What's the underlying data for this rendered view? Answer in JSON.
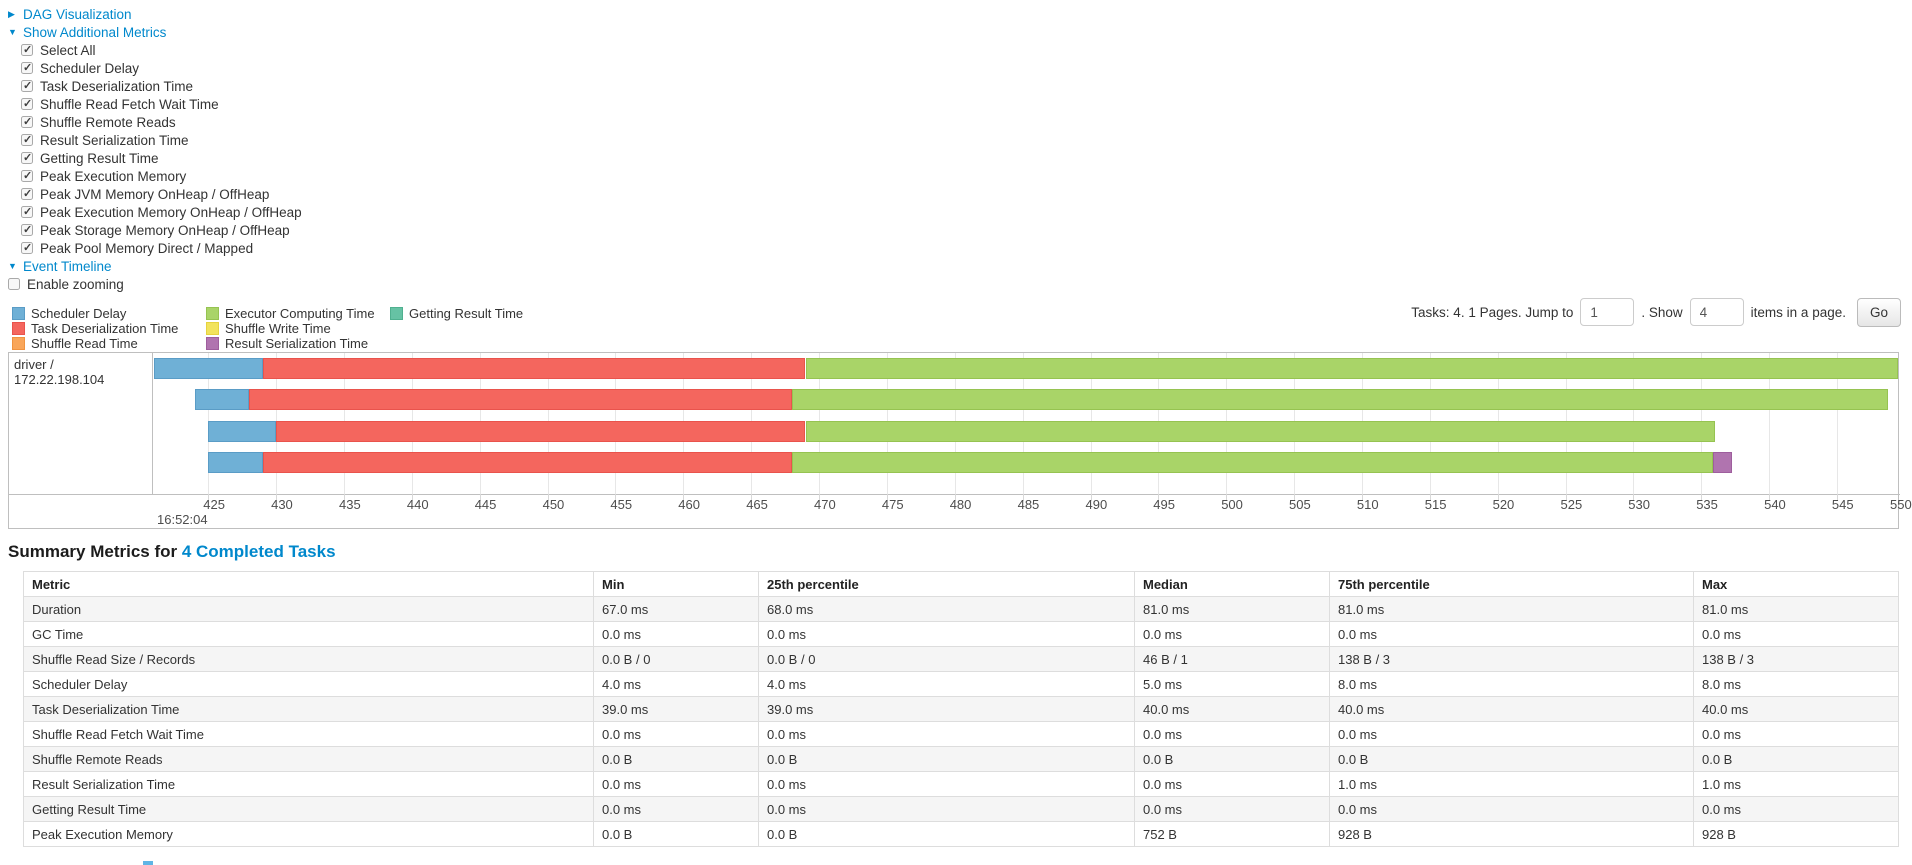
{
  "controls": {
    "dag_visualization": "DAG Visualization",
    "show_additional_metrics": "Show Additional Metrics",
    "metrics_checkboxes": [
      "Select All",
      "Scheduler Delay",
      "Task Deserialization Time",
      "Shuffle Read Fetch Wait Time",
      "Shuffle Remote Reads",
      "Result Serialization Time",
      "Getting Result Time",
      "Peak Execution Memory",
      "Peak JVM Memory OnHeap / OffHeap",
      "Peak Execution Memory OnHeap / OffHeap",
      "Peak Storage Memory OnHeap / OffHeap",
      "Peak Pool Memory Direct / Mapped"
    ],
    "event_timeline": "Event Timeline",
    "enable_zooming": "Enable zooming"
  },
  "pagination": {
    "tasks_info": "Tasks: 4. 1 Pages. Jump to",
    "jump_value": "1",
    "dot_show": ". Show",
    "show_value": "4",
    "items_label": "items in a page.",
    "go_label": "Go"
  },
  "series_styles": {
    "Scheduler Delay": {
      "fill": "#6fb0d6",
      "border": "#5a9cc6"
    },
    "Task Deserialization Time": {
      "fill": "#f4665e",
      "border": "#e9534c"
    },
    "Shuffle Read Time": {
      "fill": "#f9a65a",
      "border": "#f09340"
    },
    "Executor Computing Time": {
      "fill": "#a9d468",
      "border": "#96c351"
    },
    "Shuffle Write Time": {
      "fill": "#f2e35c",
      "border": "#e6d33f"
    },
    "Result Serialization Time": {
      "fill": "#b074af",
      "border": "#9e5e9d"
    },
    "Getting Result Time": {
      "fill": "#66c2a4",
      "border": "#4fb08f"
    }
  },
  "legend_columns": [
    [
      "Scheduler Delay",
      "Task Deserialization Time",
      "Shuffle Read Time"
    ],
    [
      "Executor Computing Time",
      "Shuffle Write Time",
      "Result Serialization Time"
    ],
    [
      "Getting Result Time"
    ]
  ],
  "chart_data": {
    "type": "timeline-gantt",
    "group_label": "driver / 172.22.198.104",
    "x_axis": {
      "domain": [
        421,
        549.5
      ],
      "tick_start": 425,
      "tick_end": 550,
      "tick_step": 5,
      "time_label": "16:52:04"
    },
    "tasks": [
      {
        "segments": [
          {
            "name": "Scheduler Delay",
            "start": 421,
            "end": 429
          },
          {
            "name": "Task Deserialization Time",
            "start": 429,
            "end": 469
          },
          {
            "name": "Executor Computing Time",
            "start": 469,
            "end": 549.6
          }
        ]
      },
      {
        "segments": [
          {
            "name": "Scheduler Delay",
            "start": 424,
            "end": 428
          },
          {
            "name": "Task Deserialization Time",
            "start": 428,
            "end": 468
          },
          {
            "name": "Executor Computing Time",
            "start": 468,
            "end": 548.8
          }
        ]
      },
      {
        "segments": [
          {
            "name": "Scheduler Delay",
            "start": 425,
            "end": 430
          },
          {
            "name": "Task Deserialization Time",
            "start": 430,
            "end": 469
          },
          {
            "name": "Executor Computing Time",
            "start": 469,
            "end": 536
          }
        ]
      },
      {
        "segments": [
          {
            "name": "Scheduler Delay",
            "start": 425,
            "end": 429
          },
          {
            "name": "Task Deserialization Time",
            "start": 429,
            "end": 468
          },
          {
            "name": "Executor Computing Time",
            "start": 468,
            "end": 535.9
          },
          {
            "name": "Result Serialization Time",
            "start": 535.9,
            "end": 537.3
          }
        ]
      }
    ]
  },
  "summary": {
    "title_prefix": "Summary Metrics for ",
    "title_link": "4 Completed Tasks",
    "table": {
      "headers": [
        "Metric",
        "Min",
        "25th percentile",
        "Median",
        "75th percentile",
        "Max"
      ],
      "rows": [
        [
          "Duration",
          "67.0 ms",
          "68.0 ms",
          "81.0 ms",
          "81.0 ms",
          "81.0 ms"
        ],
        [
          "GC Time",
          "0.0 ms",
          "0.0 ms",
          "0.0 ms",
          "0.0 ms",
          "0.0 ms"
        ],
        [
          "Shuffle Read Size / Records",
          "0.0 B / 0",
          "0.0 B / 0",
          "46 B / 1",
          "138 B / 3",
          "138 B / 3"
        ],
        [
          "Scheduler Delay",
          "4.0 ms",
          "4.0 ms",
          "5.0 ms",
          "8.0 ms",
          "8.0 ms"
        ],
        [
          "Task Deserialization Time",
          "39.0 ms",
          "39.0 ms",
          "40.0 ms",
          "40.0 ms",
          "40.0 ms"
        ],
        [
          "Shuffle Read Fetch Wait Time",
          "0.0 ms",
          "0.0 ms",
          "0.0 ms",
          "0.0 ms",
          "0.0 ms"
        ],
        [
          "Shuffle Remote Reads",
          "0.0 B",
          "0.0 B",
          "0.0 B",
          "0.0 B",
          "0.0 B"
        ],
        [
          "Result Serialization Time",
          "0.0 ms",
          "0.0 ms",
          "0.0 ms",
          "1.0 ms",
          "1.0 ms"
        ],
        [
          "Getting Result Time",
          "0.0 ms",
          "0.0 ms",
          "0.0 ms",
          "0.0 ms",
          "0.0 ms"
        ],
        [
          "Peak Execution Memory",
          "0.0 B",
          "0.0 B",
          "752 B",
          "928 B",
          "928 B"
        ]
      ]
    }
  }
}
